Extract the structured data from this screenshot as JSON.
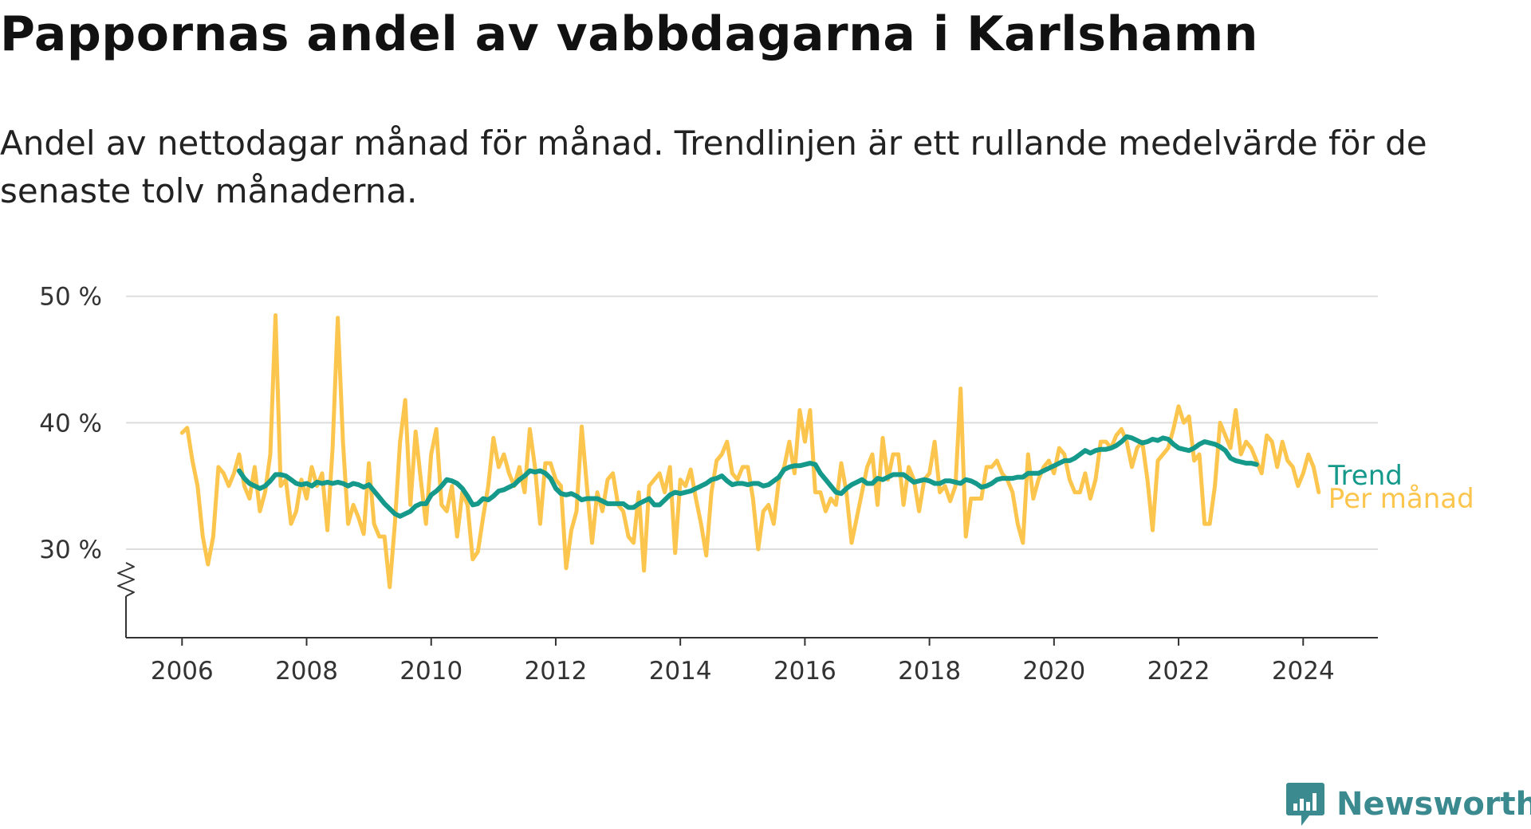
{
  "title": "Pappornas andel av vabbdagarna i Karlshamn",
  "subtitle": "Andel av nettodagar månad för månad. Trendlinjen är ett rullande medelvärde för de senaste tolv månaderna.",
  "brand": "Newsworthy",
  "colors": {
    "trend": "#14998a",
    "monthly": "#fcc54d",
    "grid": "#dddddd",
    "axis": "#333333",
    "brand": "#3a8a8f"
  },
  "chart_data": {
    "type": "line",
    "title": "Pappornas andel av vabbdagarna i Karlshamn",
    "xlabel": "",
    "ylabel": "",
    "x_unit": "year (decimal)",
    "xlim": [
      2005.1,
      2025.2
    ],
    "ylim": [
      23,
      52
    ],
    "y_axis_break": true,
    "grid": "horizontal",
    "x_ticks": [
      2006,
      2008,
      2010,
      2012,
      2014,
      2016,
      2018,
      2020,
      2022,
      2024
    ],
    "x_tick_labels": [
      "2006",
      "2008",
      "2010",
      "2012",
      "2014",
      "2016",
      "2018",
      "2020",
      "2022",
      "2024"
    ],
    "y_ticks": [
      30,
      40,
      50
    ],
    "y_tick_labels": [
      "30 %",
      "40 %",
      "50 %"
    ],
    "legend": "end-of-line labels, right",
    "series": [
      {
        "name": "Per månad",
        "key": "monthly",
        "x_start": 2006.0,
        "x_step_months": 1,
        "values": [
          39.2,
          39.6,
          37.0,
          35.0,
          31.0,
          28.8,
          31.0,
          36.5,
          36.0,
          35.0,
          36.0,
          37.5,
          35.0,
          34.0,
          36.5,
          33.0,
          34.5,
          37.5,
          48.5,
          35.0,
          35.5,
          32.0,
          33.0,
          35.5,
          34.0,
          36.5,
          35.0,
          36.0,
          31.5,
          38.0,
          48.3,
          38.5,
          32.0,
          33.5,
          32.5,
          31.2,
          36.8,
          32.0,
          31.0,
          31.0,
          27.0,
          32.0,
          38.5,
          41.8,
          33.5,
          39.3,
          35.5,
          32.0,
          37.5,
          39.5,
          33.5,
          33.0,
          35.0,
          31.0,
          34.5,
          33.5,
          29.2,
          29.8,
          32.5,
          35.0,
          38.8,
          36.5,
          37.5,
          36.0,
          35.0,
          36.5,
          34.5,
          39.5,
          36.5,
          32.0,
          36.8,
          36.8,
          35.5,
          35.0,
          28.5,
          31.5,
          33.0,
          39.7,
          35.0,
          30.5,
          34.5,
          33.0,
          35.5,
          36.0,
          33.5,
          33.0,
          31.0,
          30.5,
          34.5,
          28.3,
          35.0,
          35.5,
          36.0,
          34.5,
          36.5,
          29.7,
          35.5,
          35.0,
          36.3,
          34.0,
          32.0,
          29.5,
          34.5,
          37.0,
          37.5,
          38.5,
          36.0,
          35.5,
          36.5,
          36.5,
          34.0,
          30.0,
          33.0,
          33.5,
          32.0,
          35.5,
          36.5,
          38.5,
          36.0,
          41.0,
          38.5,
          41.0,
          34.5,
          34.5,
          33.0,
          34.0,
          33.5,
          36.8,
          34.5,
          30.5,
          32.5,
          34.5,
          36.5,
          37.5,
          33.5,
          38.8,
          35.5,
          37.5,
          37.5,
          33.5,
          36.5,
          35.5,
          33.0,
          35.5,
          36.0,
          38.5,
          34.5,
          35.0,
          33.8,
          35.0,
          42.7,
          31.0,
          34.0,
          34.0,
          34.0,
          36.5,
          36.5,
          37.0,
          36.0,
          35.5,
          34.5,
          32.0,
          30.5,
          37.5,
          34.0,
          35.5,
          36.5,
          37.0,
          36.0,
          38.0,
          37.5,
          35.5,
          34.5,
          34.5,
          36.0,
          34.0,
          35.5,
          38.5,
          38.5,
          38.0,
          39.0,
          39.5,
          38.5,
          36.5,
          38.0,
          38.5,
          35.5,
          31.5,
          37.0,
          37.5,
          38.0,
          39.5,
          41.3,
          40.0,
          40.5,
          37.0,
          37.5,
          32.0,
          32.0,
          35.0,
          40.0,
          39.0,
          38.0,
          41.0,
          37.5,
          38.5,
          38.0,
          37.0,
          36.0,
          39.0,
          38.5,
          36.5,
          38.5,
          37.0,
          36.5,
          35.0,
          36.0,
          37.5,
          36.5,
          34.5
        ]
      },
      {
        "name": "Trend",
        "key": "trend",
        "x_start": 2006.917,
        "x_step_months": 1,
        "values": [
          36.2,
          35.6,
          35.2,
          35.0,
          34.8,
          35.0,
          35.4,
          35.9,
          35.9,
          35.8,
          35.5,
          35.2,
          35.1,
          35.2,
          35.0,
          35.3,
          35.2,
          35.3,
          35.2,
          35.3,
          35.2,
          35.0,
          35.2,
          35.1,
          34.9,
          35.1,
          34.6,
          34.1,
          33.6,
          33.2,
          32.8,
          32.6,
          32.8,
          33.0,
          33.4,
          33.6,
          33.6,
          34.3,
          34.6,
          35.0,
          35.5,
          35.4,
          35.2,
          34.8,
          34.2,
          33.5,
          33.6,
          34.0,
          33.9,
          34.2,
          34.6,
          34.7,
          34.9,
          35.1,
          35.5,
          35.8,
          36.2,
          36.1,
          36.2,
          36.0,
          35.6,
          34.8,
          34.4,
          34.3,
          34.4,
          34.2,
          33.9,
          34.0,
          34.0,
          34.0,
          33.8,
          33.6,
          33.6,
          33.6,
          33.6,
          33.3,
          33.3,
          33.6,
          33.8,
          34.0,
          33.5,
          33.5,
          33.9,
          34.3,
          34.5,
          34.4,
          34.5,
          34.6,
          34.8,
          35.0,
          35.2,
          35.5,
          35.6,
          35.8,
          35.4,
          35.1,
          35.2,
          35.2,
          35.1,
          35.2,
          35.2,
          35.0,
          35.1,
          35.4,
          35.7,
          36.3,
          36.5,
          36.6,
          36.6,
          36.7,
          36.8,
          36.7,
          36.0,
          35.5,
          35.0,
          34.5,
          34.4,
          34.8,
          35.1,
          35.3,
          35.5,
          35.2,
          35.2,
          35.6,
          35.5,
          35.7,
          35.9,
          35.9,
          35.9,
          35.6,
          35.3,
          35.4,
          35.5,
          35.4,
          35.2,
          35.2,
          35.4,
          35.4,
          35.3,
          35.2,
          35.5,
          35.4,
          35.2,
          34.9,
          35.0,
          35.2,
          35.5,
          35.6,
          35.6,
          35.6,
          35.7,
          35.7,
          36.0,
          36.0,
          36.0,
          36.2,
          36.4,
          36.6,
          36.8,
          37.0,
          37.0,
          37.2,
          37.5,
          37.8,
          37.6,
          37.8,
          37.9,
          37.9,
          38.0,
          38.2,
          38.5,
          38.9,
          38.8,
          38.6,
          38.4,
          38.5,
          38.7,
          38.6,
          38.8,
          38.7,
          38.3,
          38.0,
          37.9,
          37.8,
          38.0,
          38.3,
          38.5,
          38.4,
          38.3,
          38.1,
          37.8,
          37.2,
          37.0,
          36.9,
          36.8,
          36.8,
          36.7
        ]
      }
    ]
  }
}
